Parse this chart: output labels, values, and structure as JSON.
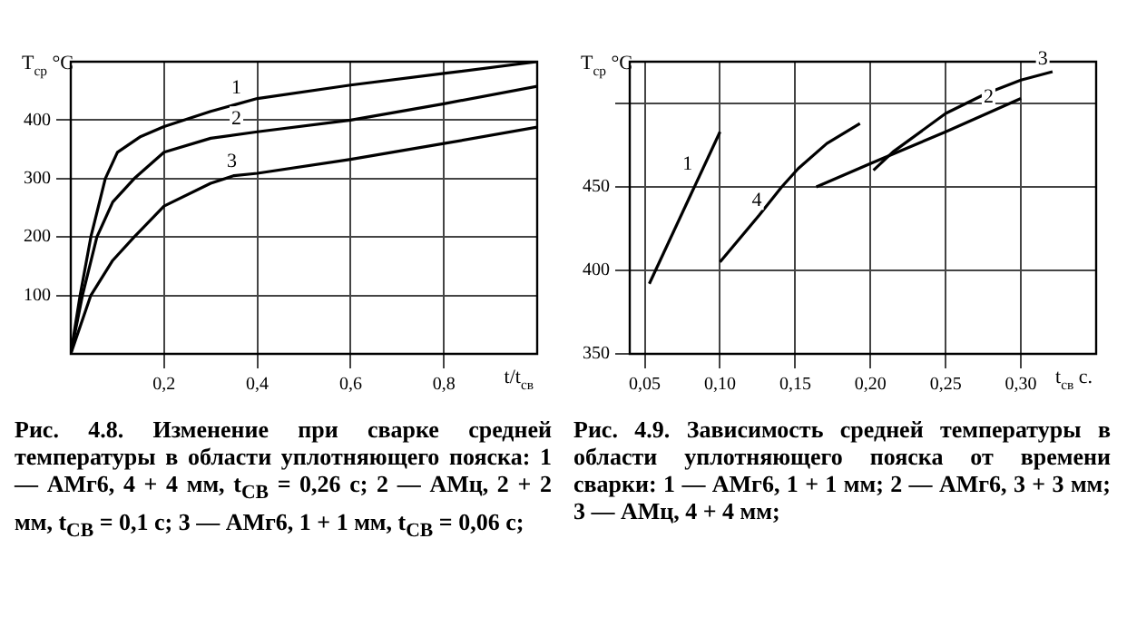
{
  "chart_data": [
    {
      "type": "line",
      "xlabel": "t/t$_{св}$",
      "ylabel": "T$_{ср}$ °C",
      "xlim": [
        0,
        1.0
      ],
      "ylim": [
        0,
        500
      ],
      "xticks": [
        {
          "value": 0.2,
          "label": "0,2"
        },
        {
          "value": 0.4,
          "label": "0,4"
        },
        {
          "value": 0.6,
          "label": "0,6"
        },
        {
          "value": 0.8,
          "label": "0,8"
        }
      ],
      "yticks": [
        100,
        200,
        300,
        400
      ],
      "grid": true,
      "legend": false,
      "marker": "none",
      "line_style": "solid",
      "series": [
        {
          "color": "#000000",
          "x": [
            0,
            0.02,
            0.043,
            0.074,
            0.1,
            0.15,
            0.2,
            0.3,
            0.4,
            0.6,
            0.8,
            1.0
          ],
          "values": [
            0,
            100,
            200,
            300,
            345,
            372,
            389,
            415,
            437,
            460,
            480,
            500
          ]
        },
        {
          "color": "#000000",
          "x": [
            0,
            0.025,
            0.056,
            0.09,
            0.136,
            0.2,
            0.3,
            0.4,
            0.6,
            0.8,
            1.0
          ],
          "values": [
            0,
            100,
            200,
            260,
            300,
            345,
            369,
            380,
            400,
            428,
            458
          ]
        },
        {
          "color": "#000000",
          "x": [
            0,
            0.043,
            0.09,
            0.136,
            0.2,
            0.3,
            0.35,
            0.4,
            0.6,
            0.8,
            1.0
          ],
          "values": [
            0,
            100,
            160,
            200,
            253,
            292,
            305,
            309,
            333,
            360,
            388
          ]
        }
      ],
      "annotations": [
        {
          "text": "1",
          "x": 0.36,
          "y": 430
        },
        {
          "text": "2",
          "x": 0.36,
          "y": 377
        },
        {
          "text": "3",
          "x": 0.35,
          "y": 305
        },
        "Рис. 4.8. Изменение при сварке средней температуры в области уплотняющего пояска: 1 — АМг6, 4 + 4 мм, t$_{CB}$ = 0,26 с; 2 — АМц, 2 + 2 мм, t$_{CB}$ = 0,1 с; 3 — АМг6, 1 + 1 мм, t$_{CB}$ = 0,06 с;"
      ]
    },
    {
      "type": "line",
      "xlabel": "t$_{св}$ с.",
      "ylabel": "T$_{ср}$ °C",
      "xlim": [
        0.04,
        0.35
      ],
      "ylim": [
        350,
        525
      ],
      "xticks": [
        {
          "value": 0.05,
          "label": "0,05"
        },
        {
          "value": 0.1,
          "label": "0,10"
        },
        {
          "value": 0.15,
          "label": "0,15"
        },
        {
          "value": 0.2,
          "label": "0,20"
        },
        {
          "value": 0.25,
          "label": "0,25"
        },
        {
          "value": 0.3,
          "label": "0,30"
        }
      ],
      "yticks": [
        350,
        400,
        450,
        {
          "value": 500,
          "label": null
        }
      ],
      "grid": true,
      "legend": false,
      "marker": "none",
      "line_style": "solid",
      "series": [
        {
          "color": "#000000",
          "x": [
            0.053,
            0.1
          ],
          "values": [
            392,
            483
          ]
        },
        {
          "color": "#000000",
          "x": [
            0.164,
            0.2,
            0.25,
            0.3
          ],
          "values": [
            450,
            464,
            483,
            503
          ]
        },
        {
          "color": "#000000",
          "x": [
            0.202,
            0.215,
            0.25,
            0.277,
            0.3,
            0.321
          ],
          "values": [
            460,
            471,
            494,
            506,
            514,
            519
          ]
        },
        {
          "color": "#000000",
          "x": [
            0.1,
            0.126,
            0.141,
            0.152,
            0.171,
            0.193
          ],
          "values": [
            405,
            433,
            450,
            461,
            476,
            488
          ]
        }
      ],
      "annotations": [
        {
          "text": "1",
          "x": 0.08,
          "y": 455
        },
        {
          "text": "2",
          "x": 0.28,
          "y": 495
        },
        {
          "text": "3",
          "x": 0.316,
          "y": 518
        },
        {
          "text": "4",
          "x": 0.126,
          "y": 433
        },
        "Рис. 4.9. Зависимость средней температуры в области уплотняющего пояска от времени сварки: 1 — АМг6, 1 + 1 мм; 2 — АМг6, 3 + 3 мм; 3 — АМц, 4 + 4 мм;"
      ]
    }
  ]
}
